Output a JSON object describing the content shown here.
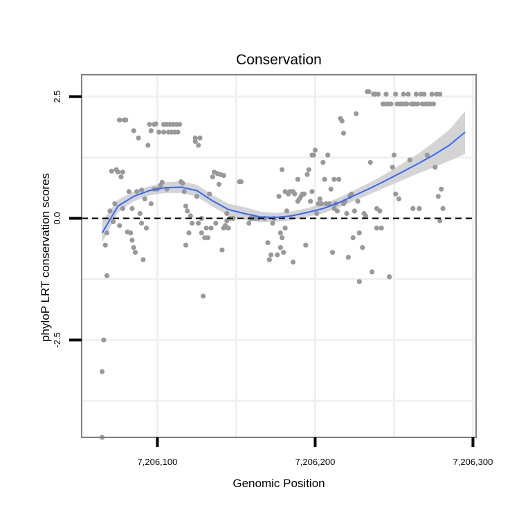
{
  "chart_data": {
    "type": "scatter",
    "title": "Conservation",
    "xlabel": "Genomic Position",
    "ylabel": "phyloP LRT conservation scores",
    "xlim": [
      7206052,
      7206302
    ],
    "ylim": [
      -4.5,
      2.95
    ],
    "x_ticks": [
      7206100,
      7206200,
      7206300
    ],
    "x_tick_labels": [
      "7,206,100",
      "7,206,200",
      "7,206,300"
    ],
    "y_ticks": [
      -2.5,
      0.0,
      2.5
    ],
    "y_tick_labels": [
      "-2.5",
      "0.0",
      "2.5"
    ],
    "reference_line": {
      "y": 0,
      "style": "dashed",
      "color": "#000000"
    },
    "colors": {
      "points": "#999999",
      "smooth": "#3366ff",
      "ribbon": "#cccccc",
      "frame": "#7f7f7f",
      "grid": "#f0f0f0"
    },
    "smooth": {
      "x": [
        7206065,
        7206075,
        7206085,
        7206095,
        7206105,
        7206115,
        7206125,
        7206135,
        7206145,
        7206155,
        7206165,
        7206175,
        7206185,
        7206195,
        7206205,
        7206215,
        7206225,
        7206235,
        7206245,
        7206255,
        7206265,
        7206275,
        7206285,
        7206295
      ],
      "y": [
        -0.3,
        0.25,
        0.45,
        0.57,
        0.63,
        0.64,
        0.57,
        0.36,
        0.18,
        0.1,
        0.03,
        0.02,
        0.05,
        0.12,
        0.2,
        0.32,
        0.47,
        0.62,
        0.78,
        0.95,
        1.12,
        1.3,
        1.5,
        1.77
      ],
      "lower": [
        -0.5,
        0.12,
        0.35,
        0.47,
        0.52,
        0.52,
        0.45,
        0.24,
        0.06,
        -0.03,
        -0.08,
        -0.07,
        -0.04,
        0.03,
        0.1,
        0.22,
        0.36,
        0.5,
        0.64,
        0.78,
        0.92,
        1.04,
        1.18,
        1.32
      ],
      "upper": [
        -0.05,
        0.38,
        0.55,
        0.66,
        0.74,
        0.76,
        0.69,
        0.48,
        0.3,
        0.23,
        0.14,
        0.11,
        0.14,
        0.21,
        0.3,
        0.42,
        0.58,
        0.74,
        0.92,
        1.12,
        1.32,
        1.56,
        1.82,
        2.2
      ],
      "color": "#3366ff"
    },
    "points": [
      [
        7206065,
        -3.15
      ],
      [
        7206065,
        -4.5
      ],
      [
        7206066,
        -2.5
      ],
      [
        7206067,
        -0.55
      ],
      [
        7206068,
        -1.18
      ],
      [
        7206068,
        -0.3
      ],
      [
        7206070,
        0.15
      ],
      [
        7206071,
        0.97
      ],
      [
        7206072,
        -0.07
      ],
      [
        7206073,
        0.3
      ],
      [
        7206074,
        1.0
      ],
      [
        7206075,
        0.95
      ],
      [
        7206076,
        2.02
      ],
      [
        7206076,
        -0.15
      ],
      [
        7206077,
        0.85
      ],
      [
        7206078,
        0.2
      ],
      [
        7206078,
        0.95
      ],
      [
        7206079,
        2.02
      ],
      [
        7206080,
        2.02
      ],
      [
        7206081,
        -0.28
      ],
      [
        7206082,
        0.55
      ],
      [
        7206083,
        -0.3
      ],
      [
        7206084,
        0.2
      ],
      [
        7206084,
        -0.45
      ],
      [
        7206085,
        -0.6
      ],
      [
        7206085,
        1.8
      ],
      [
        7206086,
        -0.7
      ],
      [
        7206087,
        0.55
      ],
      [
        7206088,
        1.65
      ],
      [
        7206089,
        0.1
      ],
      [
        7206090,
        0.58
      ],
      [
        7206090,
        -0.1
      ],
      [
        7206091,
        -0.85
      ],
      [
        7206092,
        0.4
      ],
      [
        7206093,
        -0.2
      ],
      [
        7206094,
        1.5
      ],
      [
        7206095,
        1.93
      ],
      [
        7206096,
        0.3
      ],
      [
        7206096,
        1.8
      ],
      [
        7206098,
        0.6
      ],
      [
        7206098,
        1.93
      ],
      [
        7206099,
        1.94
      ],
      [
        7206100,
        0.6
      ],
      [
        7206101,
        1.77
      ],
      [
        7206102,
        0.68
      ],
      [
        7206103,
        0.74
      ],
      [
        7206104,
        1.93
      ],
      [
        7206104,
        1.77
      ],
      [
        7206106,
        0.6
      ],
      [
        7206106,
        1.93
      ],
      [
        7206107,
        1.77
      ],
      [
        7206108,
        1.93
      ],
      [
        7206109,
        1.77
      ],
      [
        7206110,
        1.93
      ],
      [
        7206111,
        1.77
      ],
      [
        7206112,
        1.93
      ],
      [
        7206113,
        1.77
      ],
      [
        7206114,
        1.93
      ],
      [
        7206115,
        0.75
      ],
      [
        7206116,
        0.72
      ],
      [
        7206117,
        0.55
      ],
      [
        7206118,
        -0.55
      ],
      [
        7206118,
        0.25
      ],
      [
        7206119,
        0.15
      ],
      [
        7206120,
        -0.3
      ],
      [
        7206121,
        0.05
      ],
      [
        7206122,
        -0.1
      ],
      [
        7206124,
        1.65
      ],
      [
        7206124,
        1.58
      ],
      [
        7206125,
        0.45
      ],
      [
        7206126,
        -0.1
      ],
      [
        7206126,
        1.5
      ],
      [
        7206127,
        1.65
      ],
      [
        7206128,
        0.0
      ],
      [
        7206128,
        -0.3
      ],
      [
        7206129,
        -1.6
      ],
      [
        7206130,
        -0.4
      ],
      [
        7206131,
        -0.2
      ],
      [
        7206132,
        -0.4
      ],
      [
        7206133,
        0.5
      ],
      [
        7206134,
        -0.2
      ],
      [
        7206135,
        0.85
      ],
      [
        7206136,
        0.95
      ],
      [
        7206137,
        -0.1
      ],
      [
        7206138,
        0.92
      ],
      [
        7206139,
        0.7
      ],
      [
        7206140,
        0.9
      ],
      [
        7206141,
        -0.65
      ],
      [
        7206142,
        -0.2
      ],
      [
        7206142,
        0.88
      ],
      [
        7206143,
        -0.15
      ],
      [
        7206144,
        0.1
      ],
      [
        7206144,
        -0.05
      ],
      [
        7206145,
        -0.2
      ],
      [
        7206146,
        0.0
      ],
      [
        7206148,
        0.0
      ],
      [
        7206152,
        0.75
      ],
      [
        7206153,
        0.75
      ],
      [
        7206158,
        -0.1
      ],
      [
        7206159,
        0.0
      ],
      [
        7206160,
        0.0
      ],
      [
        7206162,
        0.0
      ],
      [
        7206164,
        0.0
      ],
      [
        7206168,
        0.0
      ],
      [
        7206170,
        -0.5
      ],
      [
        7206171,
        -0.85
      ],
      [
        7206172,
        -0.75
      ],
      [
        7206173,
        -0.1
      ],
      [
        7206174,
        0.0
      ],
      [
        7206176,
        -0.75
      ],
      [
        7206177,
        0.45
      ],
      [
        7206178,
        -0.6
      ],
      [
        7206178,
        -0.3
      ],
      [
        7206179,
        -0.4
      ],
      [
        7206179,
        1.0
      ],
      [
        7206180,
        -0.7
      ],
      [
        7206181,
        -0.2
      ],
      [
        7206181,
        0.55
      ],
      [
        7206182,
        0.15
      ],
      [
        7206183,
        0.5
      ],
      [
        7206184,
        0.55
      ],
      [
        7206186,
        -0.9
      ],
      [
        7206186,
        0.55
      ],
      [
        7206187,
        0.5
      ],
      [
        7206189,
        0.35
      ],
      [
        7206189,
        0.8
      ],
      [
        7206190,
        0.4
      ],
      [
        7206191,
        0.45
      ],
      [
        7206192,
        0.5
      ],
      [
        7206193,
        0.5
      ],
      [
        7206194,
        -0.55
      ],
      [
        7206195,
        0.9
      ],
      [
        7206196,
        1.0
      ],
      [
        7206197,
        0.35
      ],
      [
        7206198,
        0.55
      ],
      [
        7206198,
        1.3
      ],
      [
        7206199,
        1.3
      ],
      [
        7206200,
        1.4
      ],
      [
        7206201,
        0.1
      ],
      [
        7206202,
        0.3
      ],
      [
        7206203,
        0.4
      ],
      [
        7206204,
        0.3
      ],
      [
        7206205,
        1.15
      ],
      [
        7206206,
        0.8
      ],
      [
        7206207,
        0.3
      ],
      [
        7206208,
        1.3
      ],
      [
        7206209,
        0.3
      ],
      [
        7206210,
        0.6
      ],
      [
        7206211,
        -0.7
      ],
      [
        7206212,
        0.8
      ],
      [
        7206212,
        0.2
      ],
      [
        7206213,
        0.3
      ],
      [
        7206214,
        0.15
      ],
      [
        7206215,
        0.8
      ],
      [
        7206216,
        2.05
      ],
      [
        7206217,
        2.0
      ],
      [
        7206218,
        1.75
      ],
      [
        7206218,
        0.3
      ],
      [
        7206219,
        0.35
      ],
      [
        7206220,
        0.1
      ],
      [
        7206221,
        -0.8
      ],
      [
        7206222,
        0.45
      ],
      [
        7206223,
        0.5
      ],
      [
        7206224,
        -0.4
      ],
      [
        7206225,
        0.15
      ],
      [
        7206226,
        2.15
      ],
      [
        7206227,
        0.35
      ],
      [
        7206228,
        -0.3
      ],
      [
        7206228,
        -1.3
      ],
      [
        7206230,
        -0.6
      ],
      [
        7206231,
        0.1
      ],
      [
        7206232,
        0.05
      ],
      [
        7206233,
        2.6
      ],
      [
        7206234,
        2.6
      ],
      [
        7206235,
        1.15
      ],
      [
        7206236,
        -1.1
      ],
      [
        7206237,
        2.55
      ],
      [
        7206238,
        2.55
      ],
      [
        7206239,
        -0.2
      ],
      [
        7206239,
        0.2
      ],
      [
        7206240,
        2.55
      ],
      [
        7206241,
        0.15
      ],
      [
        7206242,
        -0.2
      ],
      [
        7206243,
        2.35
      ],
      [
        7206244,
        2.35
      ],
      [
        7206245,
        2.55
      ],
      [
        7206246,
        2.35
      ],
      [
        7206247,
        -1.2
      ],
      [
        7206248,
        2.35
      ],
      [
        7206249,
        1.05
      ],
      [
        7206250,
        1.3
      ],
      [
        7206251,
        2.55
      ],
      [
        7206251,
        0.5
      ],
      [
        7206252,
        2.35
      ],
      [
        7206253,
        0.4
      ],
      [
        7206254,
        2.35
      ],
      [
        7206255,
        2.35
      ],
      [
        7206256,
        2.55
      ],
      [
        7206257,
        2.35
      ],
      [
        7206258,
        2.35
      ],
      [
        7206259,
        2.55
      ],
      [
        7206260,
        1.2
      ],
      [
        7206261,
        2.35
      ],
      [
        7206262,
        0.2
      ],
      [
        7206262,
        2.35
      ],
      [
        7206263,
        2.35
      ],
      [
        7206264,
        2.55
      ],
      [
        7206265,
        2.35
      ],
      [
        7206266,
        0.2
      ],
      [
        7206267,
        2.55
      ],
      [
        7206268,
        2.35
      ],
      [
        7206269,
        2.55
      ],
      [
        7206270,
        2.35
      ],
      [
        7206271,
        1.3
      ],
      [
        7206272,
        2.35
      ],
      [
        7206273,
        2.35
      ],
      [
        7206274,
        2.55
      ],
      [
        7206275,
        2.35
      ],
      [
        7206276,
        1.05
      ],
      [
        7206277,
        2.55
      ],
      [
        7206278,
        0.45
      ],
      [
        7206279,
        -0.05
      ],
      [
        7206279,
        2.55
      ],
      [
        7206280,
        0.6
      ],
      [
        7206281,
        0.2
      ]
    ]
  }
}
